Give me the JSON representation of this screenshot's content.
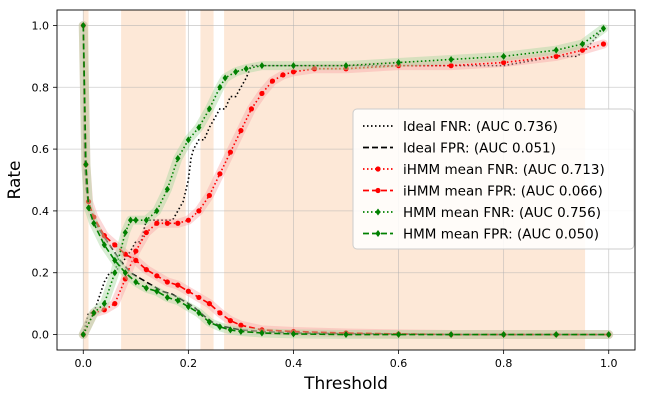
{
  "chart_data": {
    "type": "line",
    "xlabel": "Threshold",
    "ylabel": "Rate",
    "xlim": [
      -0.05,
      1.05
    ],
    "ylim": [
      -0.05,
      1.05
    ],
    "x_ticks": [
      "0.0",
      "0.2",
      "0.4",
      "0.6",
      "0.8",
      "1.0"
    ],
    "y_ticks": [
      "0.0",
      "0.2",
      "0.4",
      "0.6",
      "0.8",
      "1.0"
    ],
    "grid": true,
    "legend_position": "center-right",
    "shaded_regions": {
      "color": "#fde4d0",
      "intervals": [
        [
          0.0,
          0.01
        ],
        [
          0.072,
          0.195
        ],
        [
          0.223,
          0.248
        ],
        [
          0.268,
          0.955
        ]
      ]
    },
    "series": [
      {
        "name": "Ideal FNR: (AUC 0.736)",
        "color": "#000000",
        "style": "dotted",
        "x": [
          0.0,
          0.01,
          0.02,
          0.04,
          0.05,
          0.06,
          0.09,
          0.1,
          0.11,
          0.12,
          0.13,
          0.17,
          0.18,
          0.19,
          0.2,
          0.205,
          0.21,
          0.22,
          0.23,
          0.24,
          0.25,
          0.26,
          0.27,
          0.28,
          0.29,
          0.3,
          0.31,
          0.32,
          0.33,
          0.34,
          0.35,
          0.4,
          0.5,
          0.6,
          0.7,
          0.8,
          0.9,
          0.94,
          0.96,
          0.98,
          0.99
        ],
        "y": [
          0.0,
          0.07,
          0.07,
          0.17,
          0.2,
          0.2,
          0.27,
          0.3,
          0.3,
          0.37,
          0.37,
          0.37,
          0.4,
          0.43,
          0.5,
          0.57,
          0.6,
          0.63,
          0.63,
          0.67,
          0.7,
          0.73,
          0.73,
          0.77,
          0.77,
          0.8,
          0.83,
          0.87,
          0.87,
          0.87,
          0.87,
          0.87,
          0.87,
          0.87,
          0.87,
          0.87,
          0.9,
          0.9,
          0.93,
          0.97,
          1.0
        ]
      },
      {
        "name": "Ideal FPR: (AUC 0.051)",
        "color": "#000000",
        "style": "dashed",
        "x": [
          0.0,
          0.003,
          0.006,
          0.01,
          0.02,
          0.03,
          0.05,
          0.07,
          0.09,
          0.11,
          0.13,
          0.15,
          0.17,
          0.19,
          0.21,
          0.23,
          0.25,
          0.27,
          0.3,
          0.34,
          0.4,
          0.5,
          0.6,
          0.7,
          0.8,
          0.9,
          1.0
        ],
        "y": [
          1.0,
          0.55,
          0.47,
          0.42,
          0.38,
          0.34,
          0.29,
          0.24,
          0.2,
          0.18,
          0.16,
          0.14,
          0.13,
          0.11,
          0.09,
          0.06,
          0.035,
          0.025,
          0.015,
          0.01,
          0.005,
          0.003,
          0.002,
          0.0,
          0.0,
          0.0,
          0.0
        ]
      },
      {
        "name": "iHMM mean FNR: (AUC 0.713)",
        "color": "#ff0000",
        "style": "dotted",
        "x": [
          0.0,
          0.02,
          0.04,
          0.06,
          0.08,
          0.1,
          0.12,
          0.14,
          0.16,
          0.18,
          0.2,
          0.22,
          0.24,
          0.26,
          0.28,
          0.3,
          0.32,
          0.34,
          0.36,
          0.38,
          0.4,
          0.44,
          0.5,
          0.6,
          0.7,
          0.8,
          0.9,
          0.95,
          0.99
        ],
        "y": [
          0.0,
          0.07,
          0.08,
          0.1,
          0.18,
          0.27,
          0.33,
          0.36,
          0.36,
          0.36,
          0.37,
          0.4,
          0.45,
          0.52,
          0.59,
          0.66,
          0.73,
          0.78,
          0.82,
          0.84,
          0.85,
          0.86,
          0.86,
          0.87,
          0.87,
          0.88,
          0.9,
          0.92,
          0.94
        ]
      },
      {
        "name": "iHMM mean FPR: (AUC 0.066)",
        "color": "#ff0000",
        "style": "dashed",
        "x": [
          0.0,
          0.005,
          0.01,
          0.02,
          0.04,
          0.06,
          0.08,
          0.1,
          0.12,
          0.14,
          0.16,
          0.18,
          0.2,
          0.22,
          0.24,
          0.26,
          0.28,
          0.3,
          0.34,
          0.4,
          0.5,
          0.6,
          0.7,
          0.8,
          0.9,
          1.0
        ],
        "y": [
          1.0,
          0.55,
          0.43,
          0.38,
          0.32,
          0.29,
          0.26,
          0.24,
          0.21,
          0.19,
          0.17,
          0.16,
          0.14,
          0.12,
          0.1,
          0.07,
          0.045,
          0.03,
          0.015,
          0.01,
          0.005,
          0.002,
          0.0,
          0.0,
          0.0,
          0.0
        ]
      },
      {
        "name": "HMM mean FNR: (AUC 0.756)",
        "color": "#008000",
        "style": "dotted",
        "x": [
          0.0,
          0.02,
          0.04,
          0.06,
          0.08,
          0.09,
          0.1,
          0.12,
          0.14,
          0.16,
          0.18,
          0.2,
          0.22,
          0.24,
          0.26,
          0.27,
          0.29,
          0.31,
          0.34,
          0.4,
          0.5,
          0.6,
          0.7,
          0.8,
          0.9,
          0.95,
          0.99
        ],
        "y": [
          0.0,
          0.07,
          0.1,
          0.2,
          0.33,
          0.37,
          0.37,
          0.37,
          0.4,
          0.47,
          0.57,
          0.63,
          0.67,
          0.73,
          0.8,
          0.83,
          0.85,
          0.86,
          0.87,
          0.87,
          0.87,
          0.88,
          0.89,
          0.9,
          0.92,
          0.94,
          0.99
        ]
      },
      {
        "name": "HMM mean FPR: (AUC 0.050)",
        "color": "#008000",
        "style": "dashed",
        "x": [
          0.0,
          0.005,
          0.01,
          0.02,
          0.04,
          0.06,
          0.08,
          0.1,
          0.12,
          0.14,
          0.16,
          0.18,
          0.2,
          0.22,
          0.24,
          0.26,
          0.28,
          0.3,
          0.34,
          0.4,
          0.5,
          0.6,
          0.7,
          0.8,
          0.9,
          1.0
        ],
        "y": [
          1.0,
          0.55,
          0.41,
          0.36,
          0.29,
          0.24,
          0.2,
          0.17,
          0.15,
          0.14,
          0.12,
          0.11,
          0.09,
          0.07,
          0.04,
          0.025,
          0.015,
          0.01,
          0.005,
          0.002,
          0.0,
          0.0,
          0.0,
          0.0,
          0.0,
          0.0
        ]
      }
    ]
  }
}
